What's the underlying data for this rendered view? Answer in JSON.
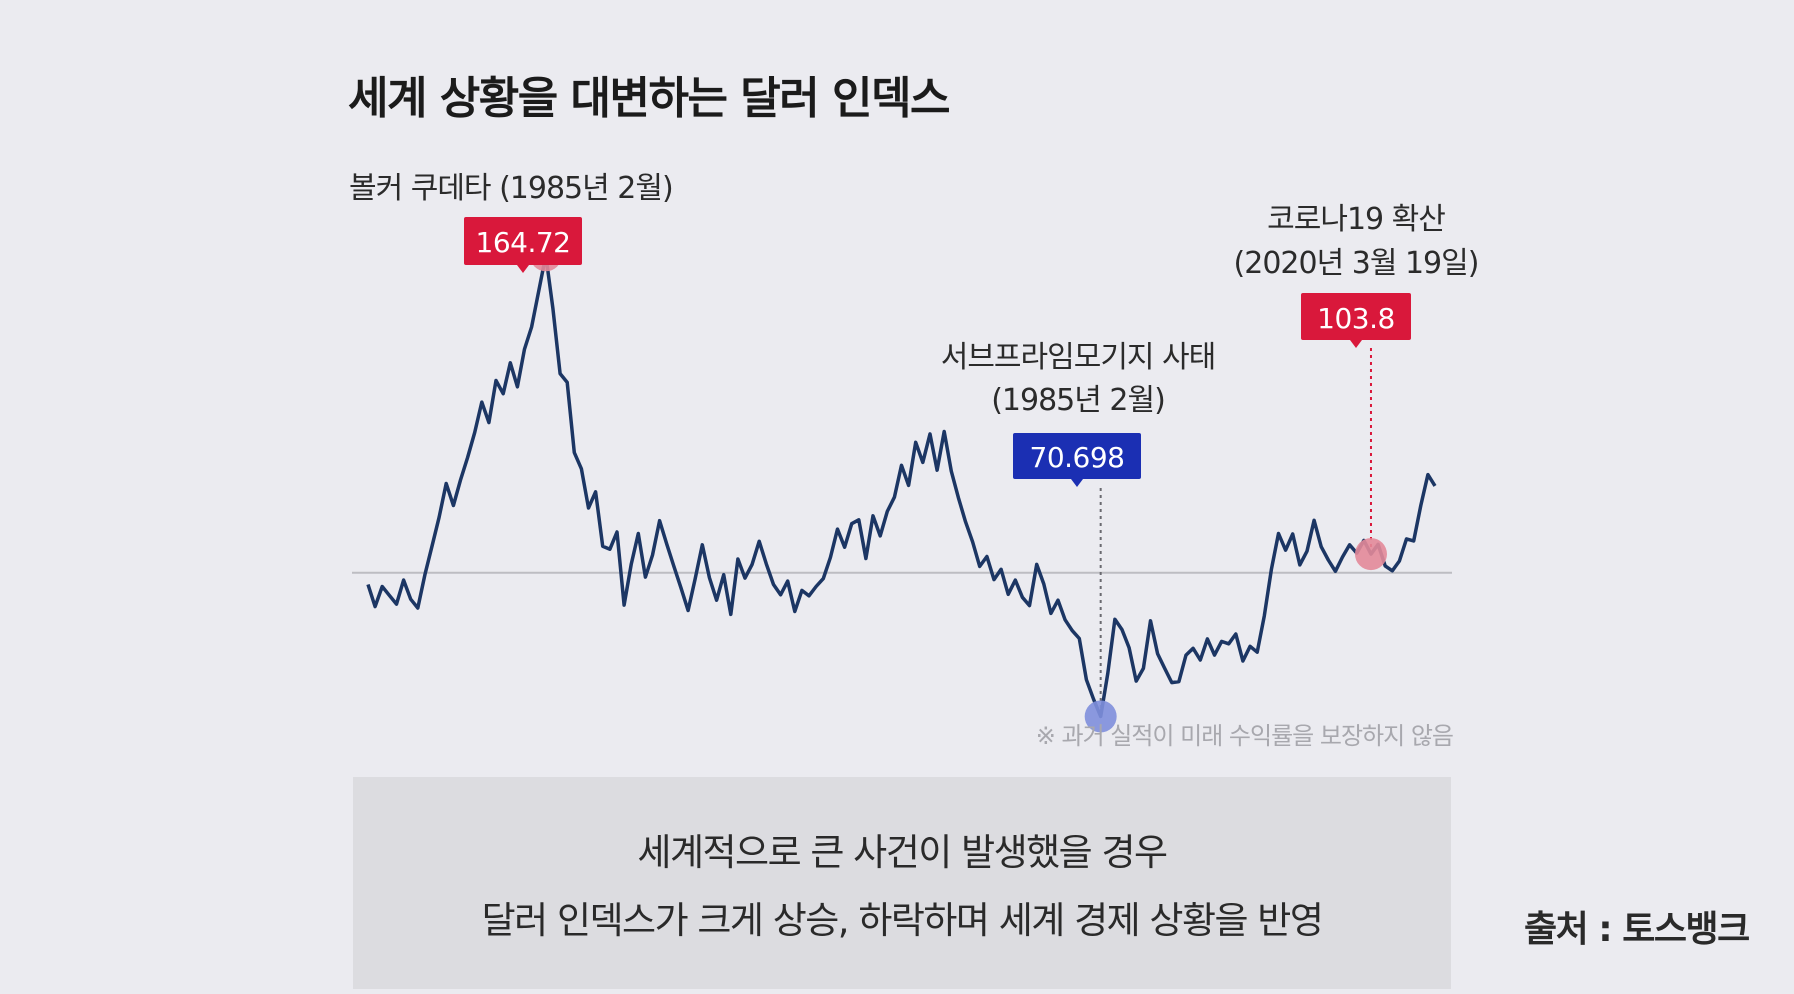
{
  "page": {
    "title": "세계 상황을 대변하는 달러 인덱스",
    "summary_line1": "세계적으로 큰 사건이 발생했을 경우",
    "summary_line2": "달러 인덱스가 크게 상승, 하락하며 세계 경제 상황을 반영",
    "source": "출처 : 토스뱅크",
    "disclaimer": "※ 과거 실적이 미래 수익률을 보장하지 않음"
  },
  "colors": {
    "line": "#1c3664",
    "baseline": "#bdbdc2",
    "peak_badge": "#d9183b",
    "trough_badge": "#1b2fb3",
    "peak_dot": "#e38a99",
    "trough_dot": "#7f8fdc"
  },
  "chart_data": {
    "type": "line",
    "title": "",
    "xlabel": "",
    "ylabel": "",
    "grid": false,
    "baseline_value": 100,
    "ylim": [
      63,
      172
    ],
    "series": [
      {
        "values": [
          97.6,
          93.1,
          97.2,
          95.4,
          93.6,
          98.5,
          94.6,
          92.8,
          99.6,
          105.4,
          111.3,
          118.2,
          113.7,
          118.9,
          123.5,
          128.6,
          134.8,
          130.6,
          139.2,
          136.5,
          142.8,
          137.9,
          145.6,
          150.1,
          157.4,
          164.72,
          153.9,
          140.6,
          138.8,
          124.5,
          121.2,
          113.2,
          116.5,
          105.4,
          104.8,
          108.3,
          93.4,
          101.7,
          108.0,
          99.1,
          103.6,
          110.6,
          105.8,
          101.3,
          96.9,
          92.3,
          98.8,
          105.7,
          99.0,
          94.4,
          99.6,
          91.5,
          102.8,
          98.9,
          101.7,
          106.4,
          101.8,
          97.6,
          95.5,
          98.3,
          92.1,
          96.4,
          95.3,
          97.2,
          98.8,
          103.1,
          108.9,
          105.2,
          110.0,
          110.8,
          102.9,
          111.6,
          107.5,
          112.5,
          115.4,
          121.9,
          117.8,
          126.6,
          122.5,
          128.3,
          120.9,
          128.8,
          120.7,
          115.3,
          110.4,
          106.3,
          101.3,
          103.3,
          98.6,
          100.7,
          95.6,
          98.5,
          95.0,
          93.3,
          101.7,
          97.7,
          91.7,
          94.4,
          90.4,
          88.2,
          86.6,
          78.2,
          74.2,
          70.698,
          79.5,
          90.5,
          88.4,
          84.7,
          77.9,
          80.5,
          90.2,
          83.5,
          80.5,
          77.6,
          77.8,
          83.2,
          84.6,
          82.2,
          86.5,
          83.2,
          86.0,
          85.5,
          87.5,
          82.0,
          85.0,
          83.8,
          91.2,
          100.7,
          108.0,
          104.6,
          107.9,
          101.6,
          104.4,
          110.7,
          105.3,
          102.6,
          100.3,
          103.2,
          105.7,
          104.0,
          106.6,
          103.8,
          105.8,
          101.4,
          100.4,
          102.4,
          106.9,
          106.5,
          113.7,
          120.0,
          117.7
        ]
      }
    ],
    "annotations": [
      {
        "kind": "peak",
        "label": "볼커 쿠데타 (1985년 2월)",
        "value_label": "164.72",
        "value": 164.72
      },
      {
        "kind": "trough",
        "label_line1": "서브프라임모기지 사태",
        "label_line2": "(1985년 2월)",
        "value_label": "70.698",
        "value": 70.698
      },
      {
        "kind": "covid",
        "label_line1": "코로나19 확산",
        "label_line2": "(2020년 3월 19일)",
        "value_label": "103.8",
        "value": 103.8
      }
    ]
  }
}
